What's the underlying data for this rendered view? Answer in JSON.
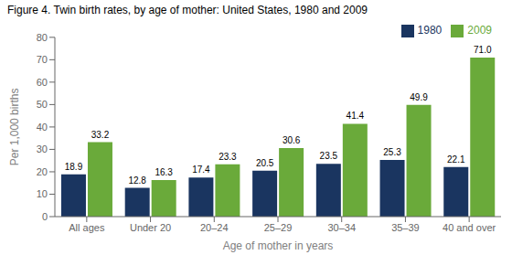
{
  "chart_data": {
    "type": "bar",
    "title": "Figure 4. Twin birth rates, by age of mother: United States, 1980 and 2009",
    "categories": [
      "All ages",
      "Under 20",
      "20–24",
      "25–29",
      "30–34",
      "35–39",
      "40 and over"
    ],
    "series": [
      {
        "name": "1980",
        "color": "#1a3560",
        "values": [
          18.9,
          12.8,
          17.4,
          20.5,
          23.5,
          25.3,
          22.1
        ],
        "value_labels": [
          "18.9",
          "12.8",
          "17.4",
          "20.5",
          "23.5",
          "25.3",
          "22.1"
        ]
      },
      {
        "name": "2009",
        "color": "#6aaa3a",
        "values": [
          33.2,
          16.3,
          23.3,
          30.6,
          41.4,
          49.9,
          71.0
        ],
        "value_labels": [
          "33.2",
          "16.3",
          "23.3",
          "30.6",
          "41.4",
          "49.9",
          "71.0"
        ]
      }
    ],
    "xlabel": "Age of mother in years",
    "ylabel": "Per 1,000 births",
    "ylim": [
      0,
      80
    ],
    "yticks": [
      0,
      10,
      20,
      30,
      40,
      50,
      60,
      70,
      80
    ],
    "legend": "upper right",
    "data_labels": true,
    "grid": false
  }
}
